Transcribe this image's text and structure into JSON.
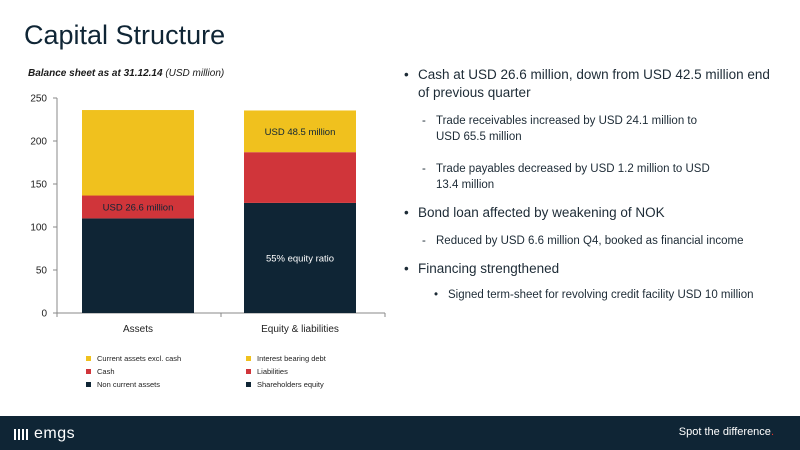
{
  "slide": {
    "title": "Capital Structure",
    "chart_heading": "Balance sheet as at 31.12.14",
    "chart_heading_unit": "(USD million)"
  },
  "chart_data": {
    "type": "bar",
    "stacked": true,
    "categories": [
      "Assets",
      "Equity & liabilities"
    ],
    "ylim": [
      0,
      250
    ],
    "yticks": [
      0,
      50,
      100,
      150,
      200,
      250
    ],
    "grid": false,
    "series": [
      {
        "name": "Non current assets",
        "color": "#0f2535",
        "values": [
          110,
          0
        ]
      },
      {
        "name": "Cash",
        "color": "#d0353a",
        "values": [
          26.6,
          0
        ]
      },
      {
        "name": "Current assets excl. cash",
        "color": "#f0c11e",
        "values": [
          99.4,
          0
        ]
      },
      {
        "name": "Shareholders equity",
        "color": "#0f2535",
        "values": [
          0,
          128
        ]
      },
      {
        "name": "Liabilities",
        "color": "#d0353a",
        "values": [
          0,
          59
        ]
      },
      {
        "name": "Interest bearing debt",
        "color": "#f0c11e",
        "values": [
          0,
          48.5
        ]
      }
    ],
    "data_labels": [
      {
        "text": "USD 26.6 million",
        "category": 0,
        "series": 1,
        "color": "#0f2535"
      },
      {
        "text": "USD 48.5 million",
        "category": 1,
        "series": 5,
        "color": "#0f2535"
      },
      {
        "text": "55% equity ratio",
        "category": 1,
        "series": 3,
        "color": "#ffffff"
      }
    ],
    "legend_position": "bottom",
    "legend": [
      {
        "label": "Current assets excl. cash",
        "color": "#f0c11e"
      },
      {
        "label": "Interest bearing debt",
        "color": "#f0c11e"
      },
      {
        "label": "Cash",
        "color": "#d0353a"
      },
      {
        "label": "Liabilities",
        "color": "#d0353a"
      },
      {
        "label": "Non current assets",
        "color": "#0f2535"
      },
      {
        "label": "Shareholders equity",
        "color": "#0f2535"
      }
    ]
  },
  "bullets": {
    "b1": "Cash at USD 26.6 million, down from USD 42.5 million end of previous quarter",
    "b1_sub1": "Trade receivables increased by USD 24.1 million to USD 65.5 million",
    "b1_sub2": "Trade payables decreased by USD 1.2 million to USD 13.4 million",
    "b2": "Bond loan affected by weakening of NOK",
    "b2_sub1": "Reduced by USD 6.6 million Q4, booked as financial income",
    "b3": "Financing strengthened",
    "b3_sub1": "Signed term-sheet for revolving credit facility USD 10 million"
  },
  "footer": {
    "logo": "emgs",
    "tagline": "Spot the difference",
    "tagline_dot": ".",
    "brand_color": "#0f2535"
  }
}
